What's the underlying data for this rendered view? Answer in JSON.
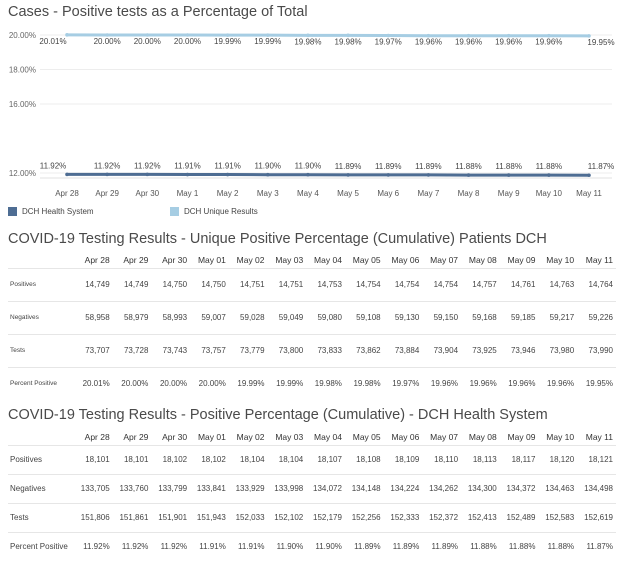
{
  "chart_data": {
    "type": "line",
    "title": "Cases - Positive tests as a Percentage of Total",
    "categories": [
      "Apr 28",
      "Apr 29",
      "Apr 30",
      "May 1",
      "May 2",
      "May 3",
      "May 4",
      "May 5",
      "May 6",
      "May 7",
      "May 8",
      "May 9",
      "May 10",
      "May 11"
    ],
    "y_ticks": [
      "20.00%",
      "18.00%",
      "16.00%",
      "12.00%"
    ],
    "ylim": [
      12,
      20
    ],
    "legend_position": "bottom-left",
    "series": [
      {
        "name": "DCH Health System",
        "color": "#4e6d93",
        "values": [
          11.92,
          11.92,
          11.92,
          11.91,
          11.91,
          11.9,
          11.9,
          11.89,
          11.89,
          11.89,
          11.88,
          11.88,
          11.88,
          11.87
        ],
        "labels": [
          "11.92%",
          "11.92%",
          "11.92%",
          "11.91%",
          "11.91%",
          "11.90%",
          "11.90%",
          "11.89%",
          "11.89%",
          "11.89%",
          "11.88%",
          "11.88%",
          "11.88%",
          "11.87%"
        ]
      },
      {
        "name": "DCH Unique Results",
        "color": "#a6cde3",
        "values": [
          20.01,
          20.0,
          20.0,
          20.0,
          19.99,
          19.99,
          19.98,
          19.98,
          19.97,
          19.96,
          19.96,
          19.96,
          19.96,
          19.95
        ],
        "labels": [
          "20.01%",
          "20.00%",
          "20.00%",
          "20.00%",
          "19.99%",
          "19.99%",
          "19.98%",
          "19.98%",
          "19.97%",
          "19.96%",
          "19.96%",
          "19.96%",
          "19.96%",
          "19.95%"
        ]
      }
    ]
  },
  "table1": {
    "title": "COVID-19 Testing Results - Unique Positive Percentage (Cumulative) Patients DCH",
    "headers": [
      "Apr 28",
      "Apr 29",
      "Apr 30",
      "May 01",
      "May 02",
      "May 03",
      "May 04",
      "May 05",
      "May 06",
      "May 07",
      "May 08",
      "May 09",
      "May 10",
      "May 11"
    ],
    "rows": [
      {
        "label": "Positives",
        "values": [
          "14,749",
          "14,749",
          "14,750",
          "14,750",
          "14,751",
          "14,751",
          "14,753",
          "14,754",
          "14,754",
          "14,754",
          "14,757",
          "14,761",
          "14,763",
          "14,764"
        ]
      },
      {
        "label": "Negatives",
        "values": [
          "58,958",
          "58,979",
          "58,993",
          "59,007",
          "59,028",
          "59,049",
          "59,080",
          "59,108",
          "59,130",
          "59,150",
          "59,168",
          "59,185",
          "59,217",
          "59,226"
        ]
      },
      {
        "label": "Tests",
        "values": [
          "73,707",
          "73,728",
          "73,743",
          "73,757",
          "73,779",
          "73,800",
          "73,833",
          "73,862",
          "73,884",
          "73,904",
          "73,925",
          "73,946",
          "73,980",
          "73,990"
        ]
      },
      {
        "label": "Percent Positive",
        "values": [
          "20.01%",
          "20.00%",
          "20.00%",
          "20.00%",
          "19.99%",
          "19.99%",
          "19.98%",
          "19.98%",
          "19.97%",
          "19.96%",
          "19.96%",
          "19.96%",
          "19.96%",
          "19.95%"
        ]
      }
    ]
  },
  "table2": {
    "title": "COVID-19 Testing Results - Positive Percentage (Cumulative) - DCH Health System",
    "headers": [
      "Apr 28",
      "Apr 29",
      "Apr 30",
      "May 01",
      "May 02",
      "May 03",
      "May 04",
      "May 05",
      "May 06",
      "May 07",
      "May 08",
      "May 09",
      "May 10",
      "May 11"
    ],
    "rows": [
      {
        "label": "Positives",
        "values": [
          "18,101",
          "18,101",
          "18,102",
          "18,102",
          "18,104",
          "18,104",
          "18,107",
          "18,108",
          "18,109",
          "18,110",
          "18,113",
          "18,117",
          "18,120",
          "18,121"
        ]
      },
      {
        "label": "Negatives",
        "values": [
          "133,705",
          "133,760",
          "133,799",
          "133,841",
          "133,929",
          "133,998",
          "134,072",
          "134,148",
          "134,224",
          "134,262",
          "134,300",
          "134,372",
          "134,463",
          "134,498"
        ]
      },
      {
        "label": "Tests",
        "values": [
          "151,806",
          "151,861",
          "151,901",
          "151,943",
          "152,033",
          "152,102",
          "152,179",
          "152,256",
          "152,333",
          "152,372",
          "152,413",
          "152,489",
          "152,583",
          "152,619"
        ]
      },
      {
        "label": "Percent Positive",
        "values": [
          "11.92%",
          "11.92%",
          "11.92%",
          "11.91%",
          "11.91%",
          "11.90%",
          "11.90%",
          "11.89%",
          "11.89%",
          "11.89%",
          "11.88%",
          "11.88%",
          "11.88%",
          "11.87%"
        ]
      }
    ]
  }
}
